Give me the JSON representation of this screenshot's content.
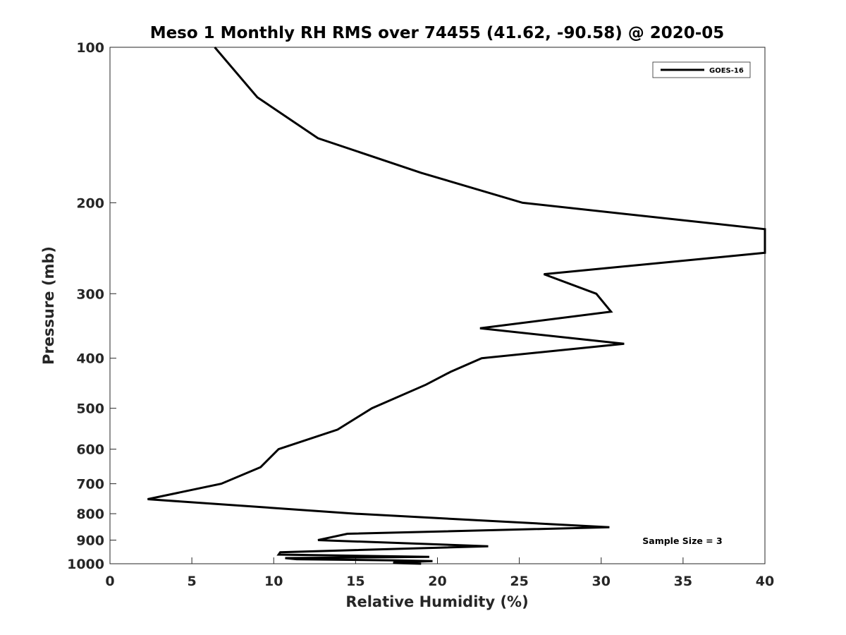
{
  "chart_data": {
    "type": "line",
    "title": "Meso 1 Monthly RH RMS over 74455 (41.62, -90.58) @ 2020-05",
    "xlabel": "Relative Humidity (%)",
    "ylabel": "Pressure (mb)",
    "xlim": [
      0,
      40
    ],
    "ylim": [
      1000,
      100
    ],
    "yscale": "log",
    "y_inverted": true,
    "grid": false,
    "xticks": [
      "0",
      "5",
      "10",
      "15",
      "20",
      "25",
      "30",
      "35",
      "40"
    ],
    "yticks": [
      "100",
      "200",
      "300",
      "400",
      "500",
      "600",
      "700",
      "800",
      "900",
      "1000"
    ],
    "legend_position": "top-right",
    "annotation": "Sample Size = 3",
    "series": [
      {
        "name": "GOES-16",
        "color": "#000000",
        "points": [
          {
            "x": 6.4,
            "y": 100
          },
          {
            "x": 9.0,
            "y": 125
          },
          {
            "x": 12.7,
            "y": 150
          },
          {
            "x": 19.0,
            "y": 175
          },
          {
            "x": 25.2,
            "y": 200
          },
          {
            "x": 40.0,
            "y": 225
          },
          {
            "x": 40.0,
            "y": 250
          },
          {
            "x": 26.5,
            "y": 275
          },
          {
            "x": 29.7,
            "y": 300
          },
          {
            "x": 30.6,
            "y": 325
          },
          {
            "x": 22.6,
            "y": 350
          },
          {
            "x": 31.4,
            "y": 375
          },
          {
            "x": 22.7,
            "y": 400
          },
          {
            "x": 20.8,
            "y": 425
          },
          {
            "x": 19.3,
            "y": 450
          },
          {
            "x": 16.0,
            "y": 500
          },
          {
            "x": 13.9,
            "y": 550
          },
          {
            "x": 10.3,
            "y": 600
          },
          {
            "x": 9.2,
            "y": 650
          },
          {
            "x": 6.8,
            "y": 700
          },
          {
            "x": 2.3,
            "y": 750
          },
          {
            "x": 15.0,
            "y": 800
          },
          {
            "x": 30.5,
            "y": 850
          },
          {
            "x": 14.5,
            "y": 875
          },
          {
            "x": 12.7,
            "y": 900
          },
          {
            "x": 23.1,
            "y": 925
          },
          {
            "x": 10.4,
            "y": 950
          },
          {
            "x": 10.3,
            "y": 960
          },
          {
            "x": 19.5,
            "y": 970
          },
          {
            "x": 10.7,
            "y": 975
          },
          {
            "x": 11.4,
            "y": 980
          },
          {
            "x": 17.4,
            "y": 985
          },
          {
            "x": 19.7,
            "y": 988
          },
          {
            "x": 18.6,
            "y": 991
          },
          {
            "x": 17.7,
            "y": 993
          },
          {
            "x": 17.3,
            "y": 995
          },
          {
            "x": 17.4,
            "y": 997
          },
          {
            "x": 19.0,
            "y": 1000
          }
        ]
      }
    ]
  }
}
